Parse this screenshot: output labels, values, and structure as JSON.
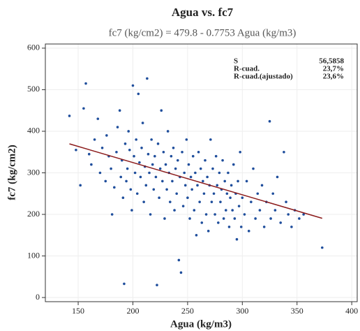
{
  "chart_data": {
    "type": "scatter",
    "title": "Agua vs. fc7",
    "subtitle": "fc7 (kg/cm2) = 479.8 - 0.7753 Agua (kg/m3)",
    "x_label": "Agua (kg/m3)",
    "y_label": "fc7 (kg/cm2)",
    "stats": [
      {
        "label": "S",
        "value": "56,5858"
      },
      {
        "label": "R-cuad.",
        "value": "23,7%"
      },
      {
        "label": "R-cuad.(ajustado)",
        "value": "23,6%"
      }
    ],
    "xlim": [
      120,
      405
    ],
    "ylim": [
      -10,
      610
    ],
    "xticks": [
      150,
      200,
      250,
      300,
      350,
      400
    ],
    "yticks": [
      0,
      100,
      200,
      300,
      400,
      500,
      600
    ],
    "grid": true,
    "series": [
      {
        "color": "#1f4e9c",
        "x": [
          142,
          157,
          155,
          148,
          152,
          160,
          162,
          165,
          168,
          170,
          172,
          175,
          176,
          178,
          180,
          181,
          183,
          185,
          186,
          188,
          189,
          190,
          191,
          192,
          193,
          194,
          195,
          196,
          197,
          198,
          199,
          200,
          201,
          202,
          203,
          204,
          205,
          206,
          207,
          208,
          209,
          210,
          211,
          212,
          213,
          214,
          215,
          216,
          217,
          218,
          219,
          220,
          221,
          222,
          223,
          224,
          225,
          226,
          227,
          228,
          229,
          230,
          231,
          232,
          233,
          234,
          235,
          236,
          237,
          238,
          239,
          240,
          241,
          242,
          243,
          244,
          245,
          246,
          247,
          248,
          249,
          250,
          251,
          252,
          253,
          254,
          255,
          256,
          257,
          258,
          259,
          260,
          261,
          262,
          263,
          264,
          265,
          266,
          267,
          268,
          269,
          270,
          271,
          272,
          273,
          274,
          275,
          276,
          277,
          278,
          279,
          280,
          281,
          282,
          283,
          284,
          285,
          286,
          287,
          288,
          289,
          290,
          291,
          292,
          293,
          294,
          295,
          296,
          297,
          298,
          299,
          300,
          302,
          304,
          306,
          308,
          310,
          312,
          314,
          316,
          318,
          320,
          322,
          325,
          326,
          328,
          330,
          332,
          335,
          338,
          340,
          342,
          345,
          348,
          352,
          356,
          373
        ],
        "values": [
          437,
          515,
          455,
          355,
          270,
          345,
          320,
          380,
          430,
          300,
          360,
          280,
          390,
          340,
          310,
          200,
          265,
          350,
          410,
          450,
          290,
          330,
          240,
          33,
          370,
          280,
          310,
          400,
          355,
          260,
          210,
          510,
          340,
          300,
          380,
          250,
          490,
          325,
          290,
          360,
          420,
          230,
          315,
          270,
          527,
          345,
          300,
          200,
          380,
          320,
          260,
          340,
          290,
          30,
          370,
          240,
          310,
          450,
          280,
          350,
          190,
          320,
          260,
          400,
          300,
          230,
          340,
          280,
          360,
          210,
          310,
          250,
          330,
          90,
          290,
          60,
          350,
          220,
          300,
          270,
          380,
          240,
          320,
          190,
          290,
          260,
          340,
          210,
          300,
          150,
          270,
          350,
          230,
          310,
          180,
          280,
          250,
          330,
          200,
          290,
          160,
          270,
          380,
          230,
          310,
          250,
          200,
          340,
          270,
          180,
          300,
          230,
          260,
          330,
          190,
          280,
          210,
          250,
          300,
          170,
          240,
          270,
          210,
          320,
          190,
          250,
          140,
          280,
          220,
          350,
          170,
          240,
          200,
          280,
          160,
          230,
          310,
          190,
          250,
          210,
          270,
          170,
          230,
          424,
          190,
          250,
          210,
          290,
          180,
          350,
          230,
          200,
          170,
          210,
          190,
          200,
          120
        ]
      }
    ],
    "fit_line": {
      "color": "#8b1a1a",
      "x": [
        142,
        373
      ],
      "values": [
        369.7,
        190.6
      ]
    }
  }
}
